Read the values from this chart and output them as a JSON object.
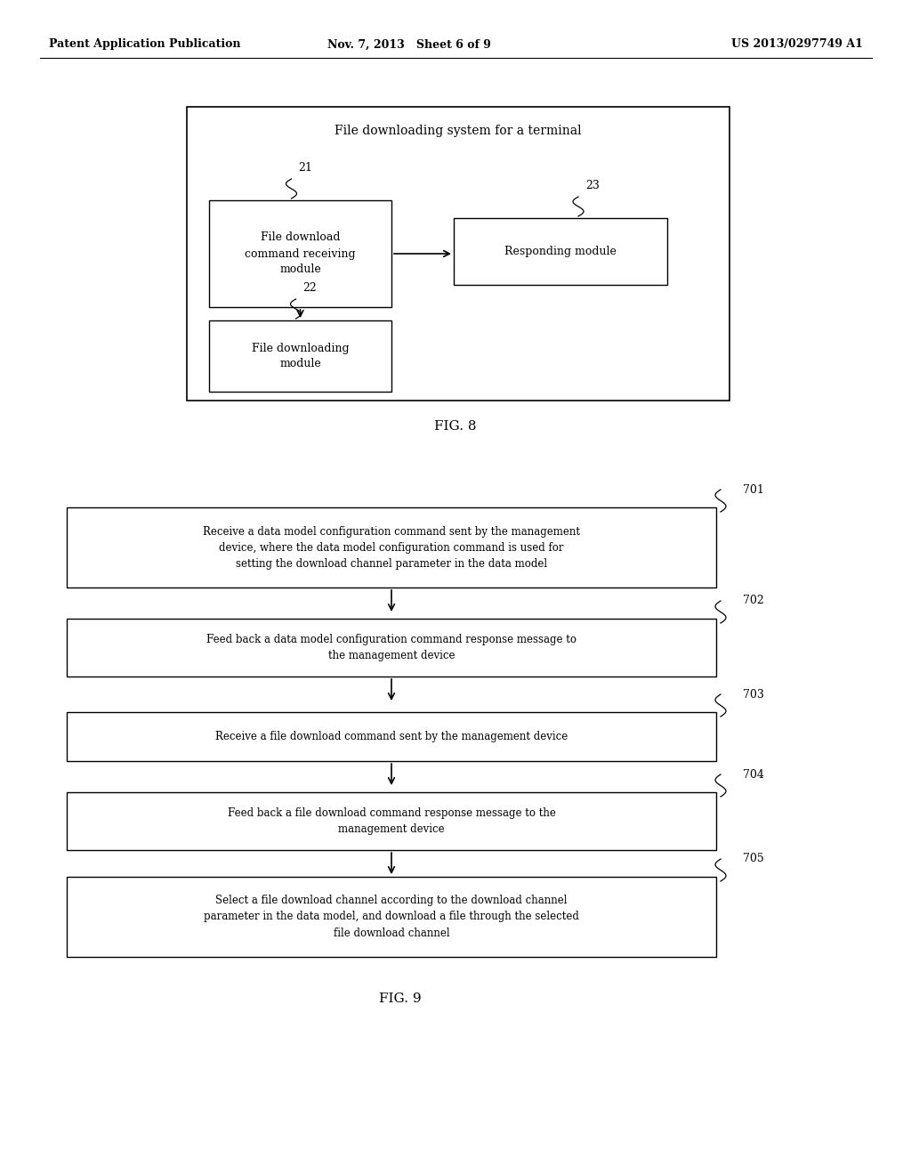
{
  "bg_color": "#ffffff",
  "header_left": "Patent Application Publication",
  "header_center": "Nov. 7, 2013   Sheet 6 of 9",
  "header_right": "US 2013/0297749 A1",
  "fig8_title": "FIG. 8",
  "fig9_title": "FIG. 9",
  "fig8_outer_label": "File downloading system for a terminal",
  "box21_text": "File download\ncommand receiving\nmodule",
  "box22_text": "File downloading\nmodule",
  "box23_text": "Responding module",
  "step701": "Receive a data model configuration command sent by the management\ndevice, where the data model configuration command is used for\nsetting the download channel parameter in the data model",
  "step702": "Feed back a data model configuration command response message to\nthe management device",
  "step703": "Receive a file download command sent by the management device",
  "step704": "Feed back a file download command response message to the\nmanagement device",
  "step705": "Select a file download channel according to the download channel\nparameter in the data model, and download a file through the selected\nfile download channel"
}
